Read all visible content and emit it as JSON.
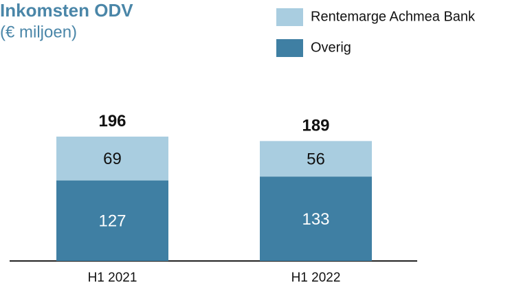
{
  "chart_data": {
    "type": "stacked_bar",
    "title": "Inkomsten ODV",
    "subtitle": "(€ miljoen)",
    "categories": [
      "H1 2021",
      "H1 2022"
    ],
    "series": [
      {
        "name": "Overig",
        "color": "#3f7fa3",
        "values": [
          127,
          133
        ]
      },
      {
        "name": "Rentemarge Achmea Bank",
        "color": "#a9cde0",
        "values": [
          69,
          56
        ]
      }
    ],
    "totals": [
      196,
      189
    ],
    "ylim": [
      0,
      250
    ],
    "legend": "top-right"
  }
}
